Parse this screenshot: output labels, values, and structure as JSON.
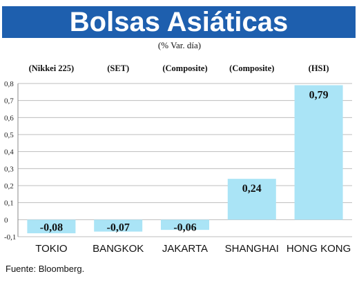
{
  "header": {
    "title": "Bolsas Asiáticas",
    "subtitle": "(% Var. día)"
  },
  "footer": {
    "source": "Fuente: Bloomberg."
  },
  "colors": {
    "title_bg": "#1e5fae",
    "bar": "#aae4f6",
    "grid": "#bdbdbd"
  },
  "chart_data": {
    "type": "bar",
    "categories": [
      "TOKIO",
      "BANGKOK",
      "JAKARTA",
      "SHANGHAI",
      "HONG KONG"
    ],
    "index_labels": [
      "(Nikkei 225)",
      "(SET)",
      "(Composite)",
      "(Composite)",
      "(HSI)"
    ],
    "values": [
      -0.08,
      -0.07,
      -0.06,
      0.24,
      0.79
    ],
    "value_labels": [
      "-0,08",
      "-0,07",
      "-0,06",
      "0,24",
      "0,79"
    ],
    "ylim": [
      -0.1,
      0.8
    ],
    "yticks": [
      -0.1,
      0,
      0.1,
      0.2,
      0.3,
      0.4,
      0.5,
      0.6,
      0.7,
      0.8
    ],
    "ytick_labels": [
      "-0,1",
      "0",
      "0,1",
      "0,2",
      "0,3",
      "0,4",
      "0,5",
      "0,6",
      "0,7",
      "0,8"
    ],
    "grid": true
  }
}
